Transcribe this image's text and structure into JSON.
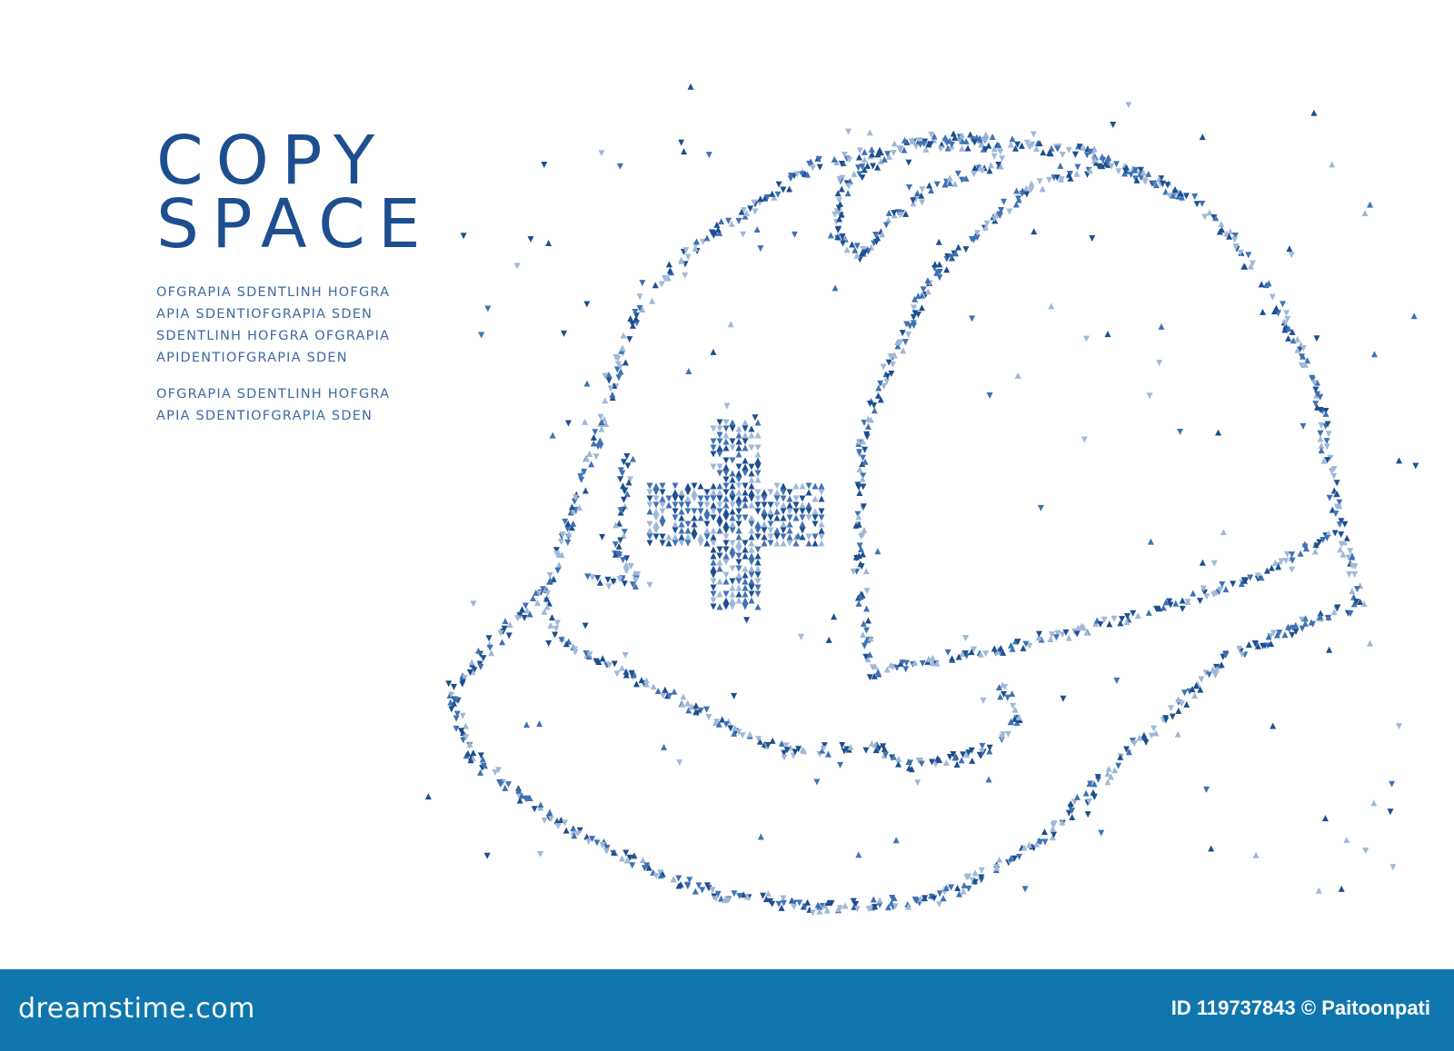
{
  "copy_space": {
    "title_line1": "COPY",
    "title_line2": "SPACE",
    "paragraph1": [
      "OFGRAPIA  SDENTLINH  HOFGRA",
      "APIA  SDENTIOFGRAPIA  SDEN",
      "SDENTLINH  HOFGRA  OFGRAPIA",
      "APIDENTIOFGRAPIA  SDEN"
    ],
    "paragraph2": [
      "OFGRAPIA  SDENTLINH  HOFGRA",
      "APIA  SDENTIOFGRAPIA  SDEN"
    ]
  },
  "illustration": {
    "subject": "safety-helmet-with-cross-icon",
    "colors": [
      "#1d4f8f",
      "#3f72b3",
      "#9fb8d8"
    ]
  },
  "banner": {
    "logo": "dreamstime.com",
    "credit": "ID 119737843 © Paitoonpati",
    "color": "#0f77ae"
  }
}
